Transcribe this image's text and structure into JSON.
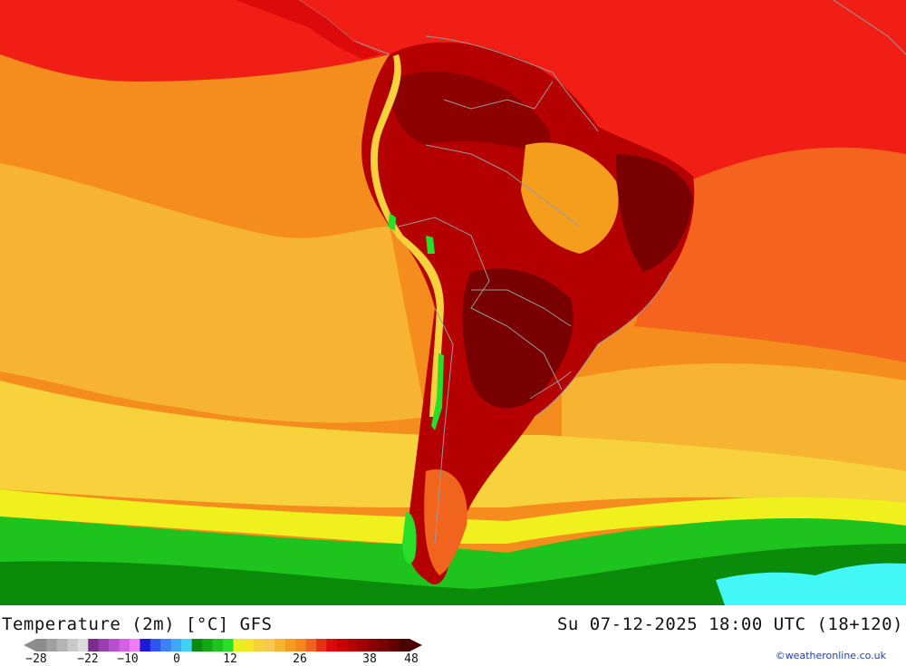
{
  "header": {
    "title_left": "Temperature (2m) [°C] GFS",
    "title_right": "Su 07-12-2025 18:00 UTC (18+120)"
  },
  "legend": {
    "tick_labels": [
      "-28",
      "-22",
      "-10",
      "0",
      "12",
      "26",
      "38",
      "48"
    ],
    "colors": [
      "#8c8c8c",
      "#a0a0a0",
      "#b4b4b4",
      "#c8c8c8",
      "#dcdcdc",
      "#7b2d8e",
      "#9b3fb0",
      "#b84fcc",
      "#d660e6",
      "#f07cf7",
      "#1a1ad6",
      "#2d57f0",
      "#3c82f5",
      "#3fa8f7",
      "#43d2f7",
      "#0a8c0a",
      "#14a814",
      "#1ec31e",
      "#28de28",
      "#e6f01e",
      "#f5e628",
      "#f7d23c",
      "#f7c850",
      "#f5b432",
      "#f59e1e",
      "#f5871e",
      "#f0641e",
      "#e63214",
      "#dc0a0a",
      "#c80000",
      "#b40000",
      "#a00000",
      "#8c0000",
      "#780000",
      "#640000",
      "#4b0000"
    ]
  },
  "credit": "©weatheronline.co.uk",
  "map": {
    "colors": {
      "ocean_north": "#f01e14",
      "ocean_warm": "#f58c1e",
      "ocean_mild": "#f7b432",
      "ocean_cool": "#f7d23c",
      "ocean_yellow": "#f0f01e",
      "cold_green": "#1ec31e",
      "deep_green": "#0a8c0a",
      "land_hot": "#b40000",
      "land_very_hot": "#780000",
      "andes_green": "#28de28",
      "cyan_ice": "#43f7f7",
      "border": "#9a9a9a"
    }
  }
}
